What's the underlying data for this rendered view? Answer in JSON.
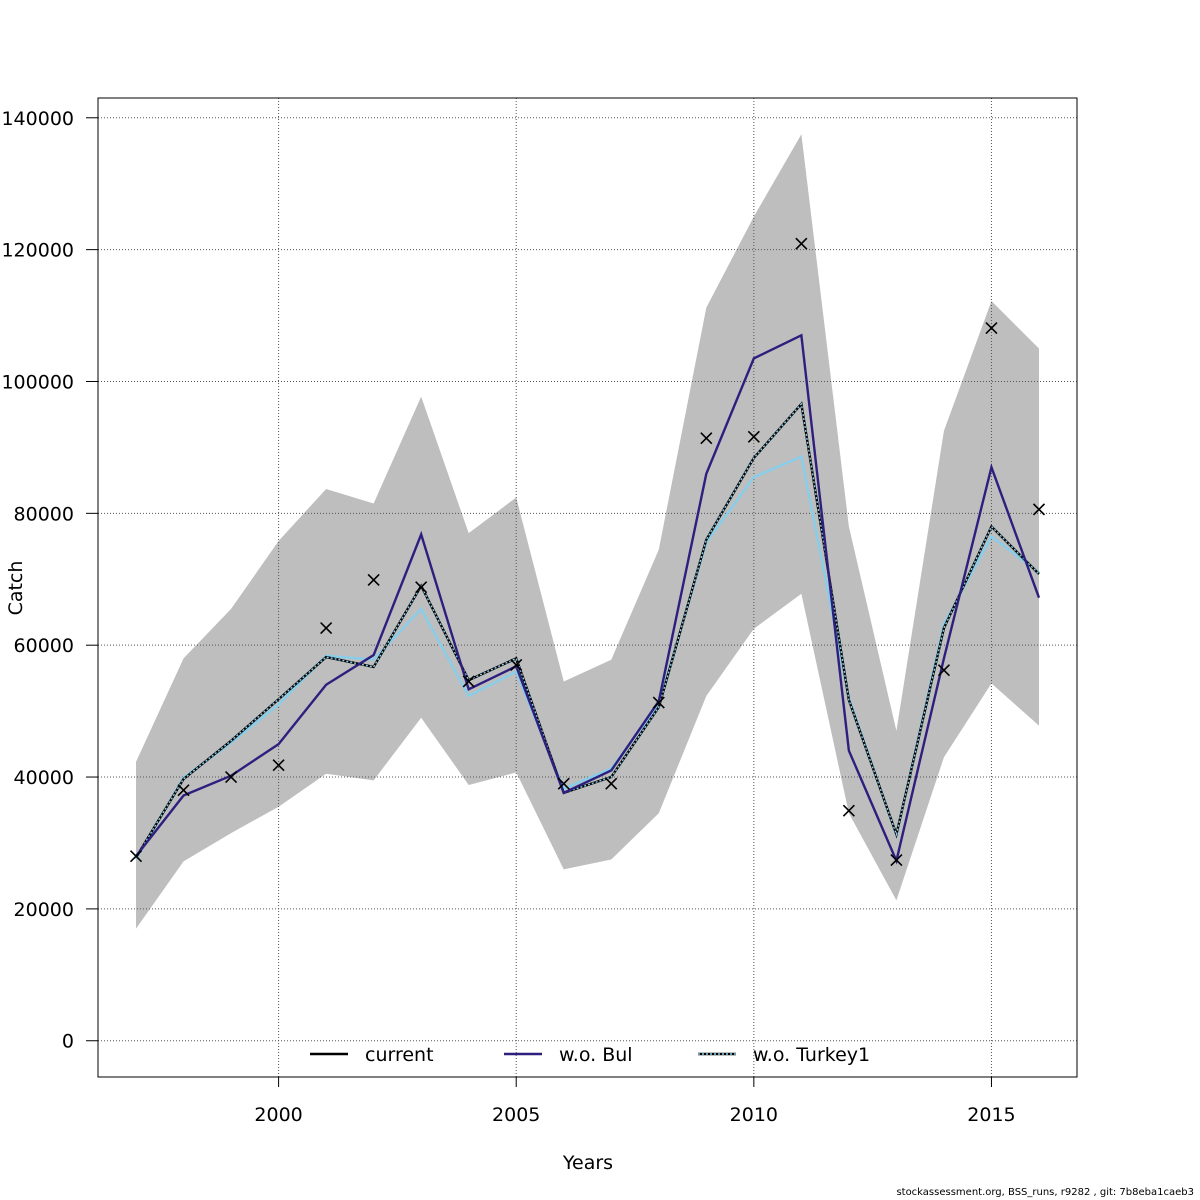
{
  "footer": "stockassessment.org, BSS_runs, r9282 , git: 7b8eba1caeb3",
  "chart_data": {
    "type": "line",
    "title": "",
    "xlabel": "Years",
    "ylabel": "Catch",
    "xlim": [
      1996.2,
      2016.8
    ],
    "ylim": [
      -5500,
      143000
    ],
    "xticks": [
      2000,
      2005,
      2010,
      2015
    ],
    "yticks": [
      0,
      20000,
      40000,
      60000,
      80000,
      100000,
      120000,
      140000
    ],
    "grid": true,
    "legend_position": "bottom",
    "x": [
      1997,
      1998,
      1999,
      2000,
      2001,
      2002,
      2003,
      2004,
      2005,
      2006,
      2007,
      2008,
      2009,
      2010,
      2011,
      2012,
      2013,
      2014,
      2015,
      2016
    ],
    "band": {
      "color": "#bebebe",
      "upper": [
        42300,
        58000,
        65500,
        75800,
        83700,
        81500,
        97700,
        77000,
        82400,
        54500,
        57800,
        74500,
        111200,
        125000,
        137500,
        78000,
        47000,
        92500,
        112200,
        105000
      ],
      "lower": [
        17000,
        27200,
        31500,
        35500,
        40500,
        39500,
        49000,
        38800,
        40700,
        26000,
        27500,
        34500,
        52300,
        62500,
        67800,
        34500,
        21300,
        43000,
        54200,
        47800
      ]
    },
    "series": [
      {
        "name": "current",
        "color": "#000000",
        "values": [
          27800,
          39700,
          45500,
          51800,
          58200,
          56700,
          69000,
          54700,
          58000,
          37600,
          40000,
          50600,
          76000,
          88400,
          96600,
          51700,
          31300,
          62600,
          78000,
          70800
        ]
      },
      {
        "name": "w.o. Bul",
        "color": "#2e1f7f",
        "values": [
          28000,
          37200,
          40200,
          45000,
          54000,
          58500,
          76800,
          53300,
          56800,
          37600,
          41000,
          51500,
          86000,
          103500,
          107000,
          44000,
          27300,
          58000,
          87000,
          67200
        ]
      },
      {
        "name": "w.o. Turkey1",
        "color": "#87ceeb",
        "values": [
          27500,
          39900,
          45200,
          51000,
          58400,
          57800,
          65500,
          52300,
          56000,
          38200,
          41300,
          51000,
          75600,
          85500,
          88600,
          52000,
          31200,
          63200,
          76500,
          71000
        ]
      }
    ],
    "observed": {
      "marker": "x",
      "values": [
        28000,
        38000,
        40000,
        41800,
        62600,
        69900,
        68800,
        54500,
        57000,
        39000,
        39000,
        51300,
        91400,
        91600,
        120900,
        34900,
        27400,
        56200,
        108100,
        80600
      ]
    }
  }
}
